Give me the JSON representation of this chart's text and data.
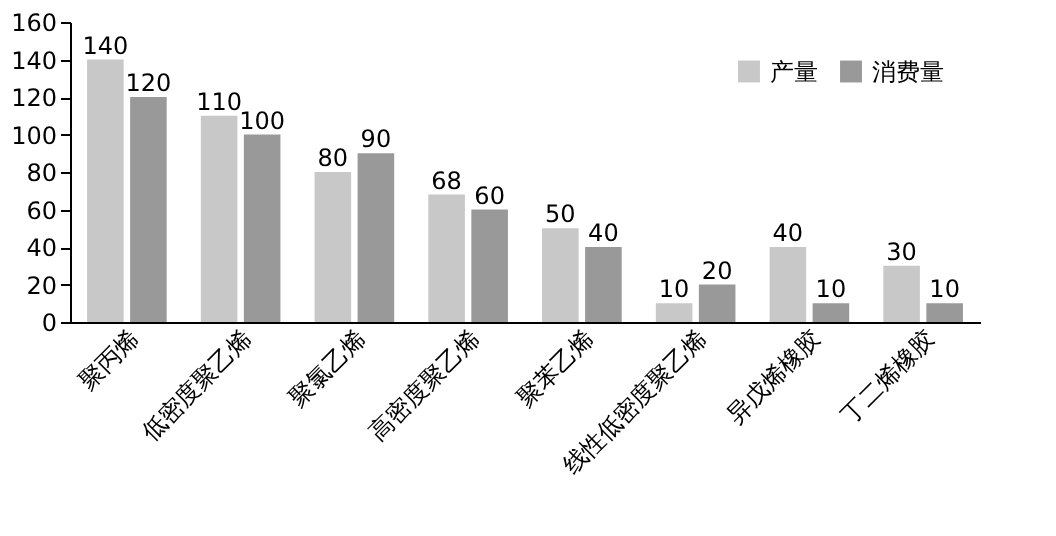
{
  "chart_data": {
    "type": "bar",
    "categories": [
      "聚丙烯",
      "低密度聚乙烯",
      "聚氯乙烯",
      "高密度聚乙烯",
      "聚苯乙烯",
      "线性低密度聚乙烯",
      "异戊烯橡胶",
      "丁二烯橡胶"
    ],
    "series": [
      {
        "name": "产量",
        "color": "#c8c8c8",
        "values": [
          140,
          110,
          80,
          68,
          50,
          10,
          40,
          30
        ]
      },
      {
        "name": "消费量",
        "color": "#999999",
        "values": [
          120,
          100,
          90,
          60,
          40,
          20,
          10,
          10
        ]
      }
    ],
    "ylim": [
      0,
      160
    ],
    "yticks": [
      0,
      20,
      40,
      60,
      80,
      100,
      120,
      140,
      160
    ],
    "data_labels": true,
    "legend": "top right",
    "grid": false
  }
}
